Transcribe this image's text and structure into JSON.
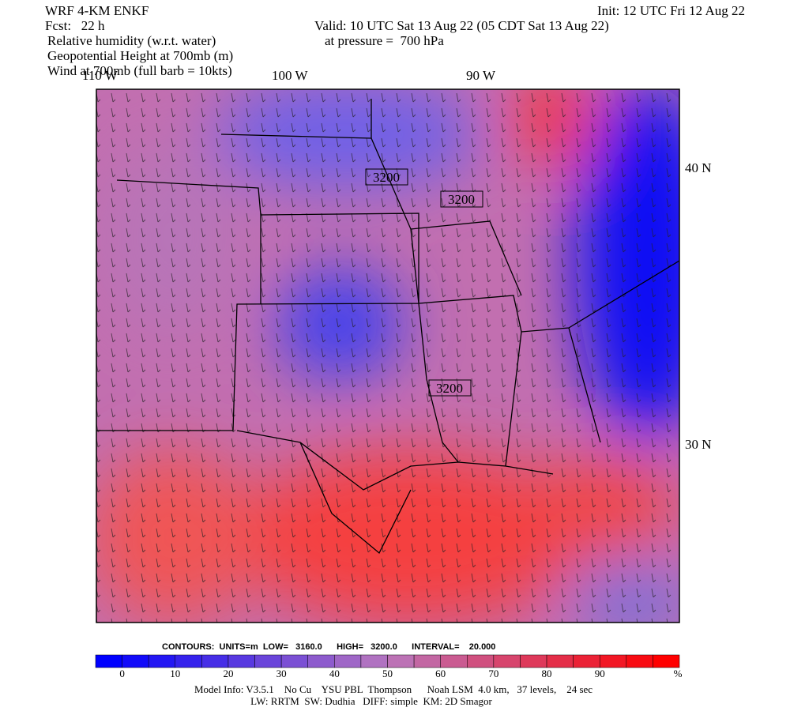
{
  "header": {
    "left": [
      "WRF 4-KM ENKF",
      "Fcst:   22 h"
    ],
    "fields": [
      "Relative humidity (w.r.t. water)",
      "Geopotential Height at 700mb (m)",
      "Wind at 700mb (full barb = 10kts)"
    ],
    "init": "Init: 12 UTC Fri 12 Aug 22",
    "valid": "Valid: 10 UTC Sat 13 Aug 22 (05 CDT Sat 13 Aug 22)",
    "level": "at pressure =  700 hPa"
  },
  "map": {
    "longitudes": [
      "110 W",
      "100 W",
      "90 W"
    ],
    "latitudes": [
      "40 N",
      "30 N"
    ],
    "contour_labels": [
      "3200",
      "3200",
      "3200"
    ]
  },
  "footer": {
    "contours": "CONTOURS:  UNITS=m  LOW=   3160.0      HIGH=   3200.0      INTERVAL=    20.000",
    "colorbar": {
      "ticks": [
        0,
        10,
        20,
        30,
        40,
        50,
        60,
        70,
        80,
        90
      ],
      "unit": "%"
    },
    "model_info": [
      "Model Info: V3.5.1    No Cu    YSU PBL  Thompson      Noah LSM  4.0 km,   37 levels,    24 sec",
      "LW: RRTM  SW: Dudhia   DIFF: simple  KM: 2D Smagor"
    ]
  }
}
